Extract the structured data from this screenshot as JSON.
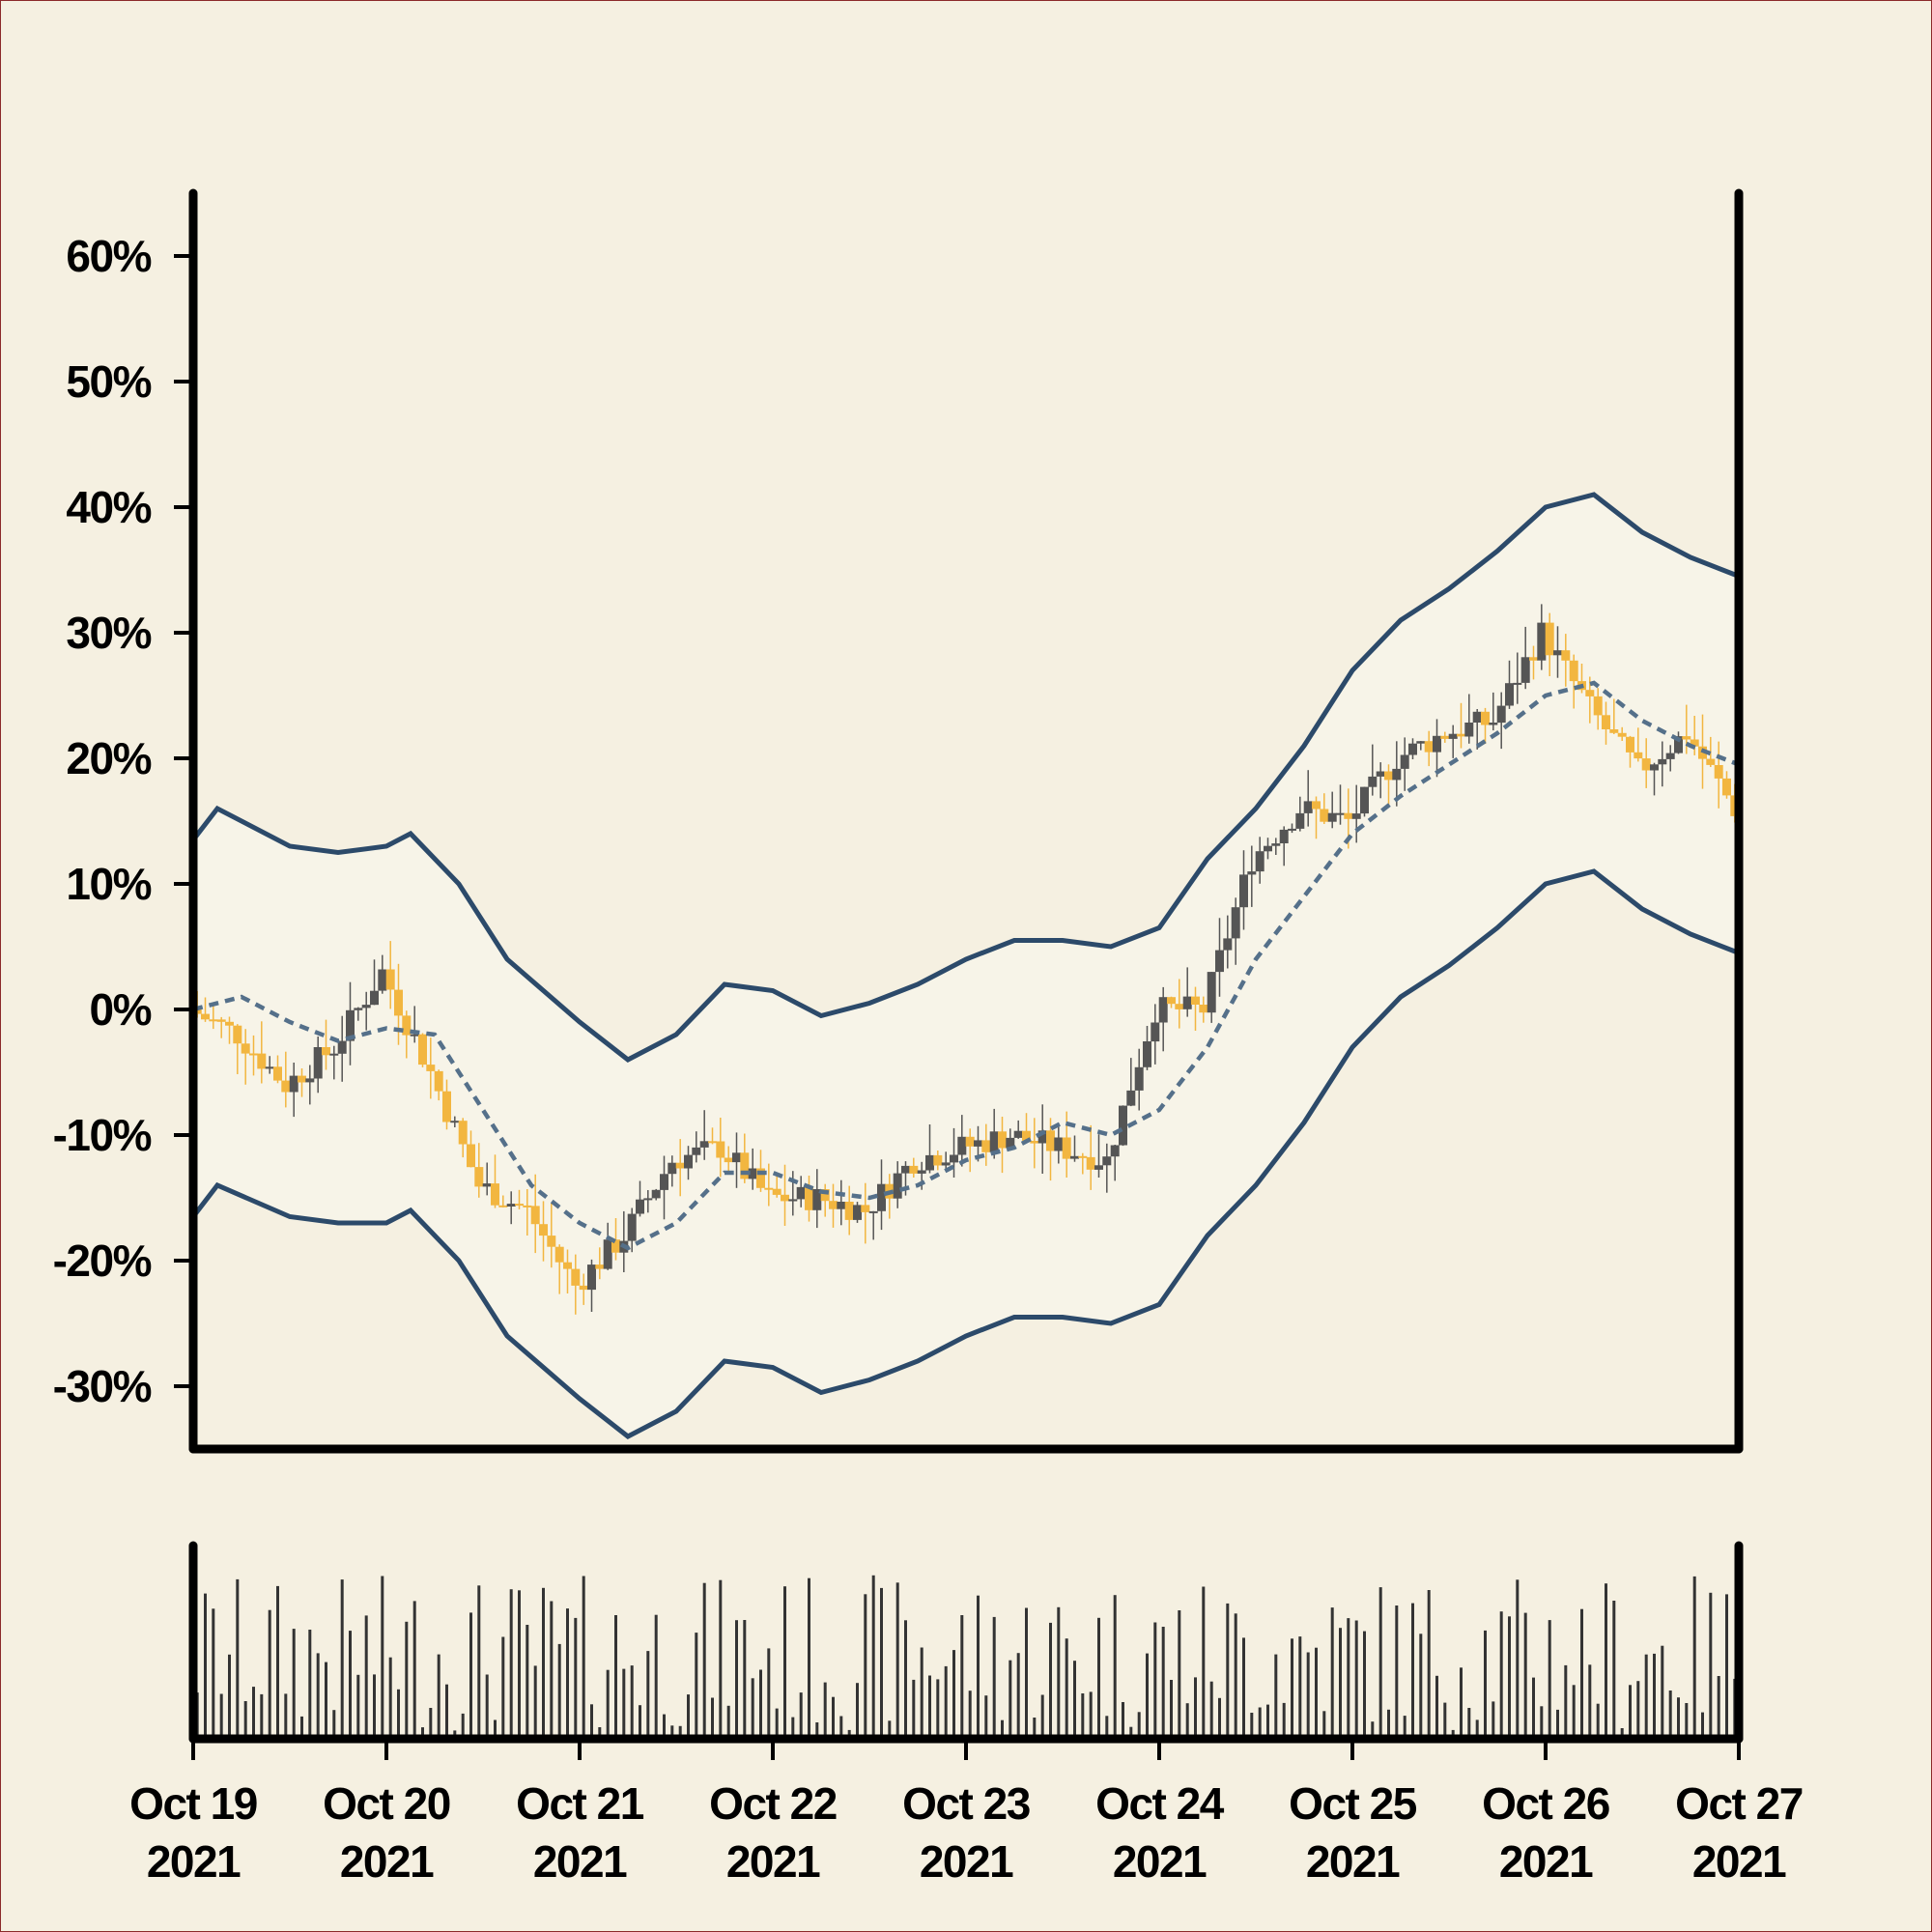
{
  "chart_data": {
    "type": "candlestick",
    "title": "",
    "xlabel": "",
    "ylabel": "",
    "y_unit": "%",
    "ylim": [
      -35,
      65
    ],
    "yticks": [
      {
        "value": 60,
        "label": "60%"
      },
      {
        "value": 50,
        "label": "50%"
      },
      {
        "value": 40,
        "label": "40%"
      },
      {
        "value": 30,
        "label": "30%"
      },
      {
        "value": 20,
        "label": "20%"
      },
      {
        "value": 10,
        "label": "10%"
      },
      {
        "value": 0,
        "label": "0%"
      },
      {
        "value": -10,
        "label": "-10%"
      },
      {
        "value": -20,
        "label": "-20%"
      },
      {
        "value": -30,
        "label": "-30%"
      }
    ],
    "xlim": [
      "2021-10-19",
      "2021-10-27"
    ],
    "xticks": [
      {
        "date": "2021-10-19",
        "line1": "Oct 19",
        "line2": "2021"
      },
      {
        "date": "2021-10-20",
        "line1": "Oct 20",
        "line2": "2021"
      },
      {
        "date": "2021-10-21",
        "line1": "Oct 21",
        "line2": "2021"
      },
      {
        "date": "2021-10-22",
        "line1": "Oct 22",
        "line2": "2021"
      },
      {
        "date": "2021-10-23",
        "line1": "Oct 23",
        "line2": "2021"
      },
      {
        "date": "2021-10-24",
        "line1": "Oct 24",
        "line2": "2021"
      },
      {
        "date": "2021-10-25",
        "line1": "Oct 25",
        "line2": "2021"
      },
      {
        "date": "2021-10-26",
        "line1": "Oct 26",
        "line2": "2021"
      },
      {
        "date": "2021-10-27",
        "line1": "Oct 27",
        "line2": "2021"
      }
    ],
    "grid": false,
    "legend": "none",
    "candle_frequency": "hourly",
    "close_path": [
      [
        "2021-10-19 00:00",
        0
      ],
      [
        "2021-10-19 06:00",
        -2
      ],
      [
        "2021-10-19 12:00",
        -6
      ],
      [
        "2021-10-19 18:00",
        -3
      ],
      [
        "2021-10-20 00:00",
        3
      ],
      [
        "2021-10-20 06:00",
        -5
      ],
      [
        "2021-10-20 12:00",
        -14
      ],
      [
        "2021-10-20 18:00",
        -16
      ],
      [
        "2021-10-21 00:00",
        -22
      ],
      [
        "2021-10-21 06:00",
        -18
      ],
      [
        "2021-10-21 12:00",
        -12
      ],
      [
        "2021-10-21 18:00",
        -11
      ],
      [
        "2021-10-22 00:00",
        -15
      ],
      [
        "2021-10-22 06:00",
        -15
      ],
      [
        "2021-10-22 12:00",
        -16
      ],
      [
        "2021-10-22 18:00",
        -12
      ],
      [
        "2021-10-23 00:00",
        -11
      ],
      [
        "2021-10-23 06:00",
        -10
      ],
      [
        "2021-10-23 12:00",
        -11
      ],
      [
        "2021-10-23 18:00",
        -12
      ],
      [
        "2021-10-24 00:00",
        0
      ],
      [
        "2021-10-24 06:00",
        0
      ],
      [
        "2021-10-24 12:00",
        12
      ],
      [
        "2021-10-24 18:00",
        16
      ],
      [
        "2021-10-25 00:00",
        15
      ],
      [
        "2021-10-25 06:00",
        20
      ],
      [
        "2021-10-25 12:00",
        22
      ],
      [
        "2021-10-25 18:00",
        23
      ],
      [
        "2021-10-26 00:00",
        30
      ],
      [
        "2021-10-26 06:00",
        24
      ],
      [
        "2021-10-26 12:00",
        19
      ],
      [
        "2021-10-26 18:00",
        22
      ],
      [
        "2021-10-27 00:00",
        16
      ]
    ],
    "moving_average": [
      [
        "2021-10-19 00:00",
        0
      ],
      [
        "2021-10-19 06:00",
        1
      ],
      [
        "2021-10-19 12:00",
        -1
      ],
      [
        "2021-10-19 18:00",
        -2.5
      ],
      [
        "2021-10-20 00:00",
        -1.5
      ],
      [
        "2021-10-20 06:00",
        -2
      ],
      [
        "2021-10-20 12:00",
        -8
      ],
      [
        "2021-10-20 18:00",
        -14
      ],
      [
        "2021-10-21 00:00",
        -17
      ],
      [
        "2021-10-21 06:00",
        -19
      ],
      [
        "2021-10-21 12:00",
        -17
      ],
      [
        "2021-10-21 18:00",
        -13
      ],
      [
        "2021-10-22 00:00",
        -13
      ],
      [
        "2021-10-22 06:00",
        -14.5
      ],
      [
        "2021-10-22 12:00",
        -15
      ],
      [
        "2021-10-22 18:00",
        -14
      ],
      [
        "2021-10-23 00:00",
        -12
      ],
      [
        "2021-10-23 06:00",
        -11
      ],
      [
        "2021-10-23 12:00",
        -9
      ],
      [
        "2021-10-23 18:00",
        -10
      ],
      [
        "2021-10-24 00:00",
        -8
      ],
      [
        "2021-10-24 06:00",
        -3
      ],
      [
        "2021-10-24 12:00",
        4
      ],
      [
        "2021-10-24 18:00",
        9
      ],
      [
        "2021-10-25 00:00",
        14
      ],
      [
        "2021-10-25 06:00",
        17
      ],
      [
        "2021-10-25 12:00",
        19.5
      ],
      [
        "2021-10-25 18:00",
        22
      ],
      [
        "2021-10-26 00:00",
        25
      ],
      [
        "2021-10-26 06:00",
        26
      ],
      [
        "2021-10-26 12:00",
        23
      ],
      [
        "2021-10-26 18:00",
        21
      ],
      [
        "2021-10-27 00:00",
        19.5
      ]
    ],
    "bands": {
      "upper": [
        [
          "2021-10-19 00:00",
          13.5
        ],
        [
          "2021-10-19 03:00",
          16
        ],
        [
          "2021-10-19 12:00",
          13
        ],
        [
          "2021-10-19 18:00",
          12.5
        ],
        [
          "2021-10-20 00:00",
          13
        ],
        [
          "2021-10-20 03:00",
          14
        ],
        [
          "2021-10-20 09:00",
          10
        ],
        [
          "2021-10-20 15:00",
          4
        ],
        [
          "2021-10-21 00:00",
          -1
        ],
        [
          "2021-10-21 06:00",
          -4
        ],
        [
          "2021-10-21 12:00",
          -2
        ],
        [
          "2021-10-21 18:00",
          2
        ],
        [
          "2021-10-22 00:00",
          1.5
        ],
        [
          "2021-10-22 06:00",
          -0.5
        ],
        [
          "2021-10-22 12:00",
          0.5
        ],
        [
          "2021-10-22 18:00",
          2
        ],
        [
          "2021-10-23 00:00",
          4
        ],
        [
          "2021-10-23 06:00",
          5.5
        ],
        [
          "2021-10-23 12:00",
          5.5
        ],
        [
          "2021-10-23 18:00",
          5
        ],
        [
          "2021-10-24 00:00",
          6.5
        ],
        [
          "2021-10-24 06:00",
          12
        ],
        [
          "2021-10-24 12:00",
          16
        ],
        [
          "2021-10-24 18:00",
          21
        ],
        [
          "2021-10-25 00:00",
          27
        ],
        [
          "2021-10-25 06:00",
          31
        ],
        [
          "2021-10-25 12:00",
          33.5
        ],
        [
          "2021-10-25 18:00",
          36.5
        ],
        [
          "2021-10-26 00:00",
          40
        ],
        [
          "2021-10-26 06:00",
          41
        ],
        [
          "2021-10-26 12:00",
          38
        ],
        [
          "2021-10-26 18:00",
          36
        ],
        [
          "2021-10-27 00:00",
          34.5
        ]
      ],
      "lower": [
        [
          "2021-10-19 00:00",
          -16.5
        ],
        [
          "2021-10-19 03:00",
          -14
        ],
        [
          "2021-10-19 12:00",
          -16.5
        ],
        [
          "2021-10-19 18:00",
          -17
        ],
        [
          "2021-10-20 00:00",
          -17
        ],
        [
          "2021-10-20 03:00",
          -16
        ],
        [
          "2021-10-20 09:00",
          -20
        ],
        [
          "2021-10-20 15:00",
          -26
        ],
        [
          "2021-10-21 00:00",
          -31
        ],
        [
          "2021-10-21 06:00",
          -34
        ],
        [
          "2021-10-21 12:00",
          -32
        ],
        [
          "2021-10-21 18:00",
          -28
        ],
        [
          "2021-10-22 00:00",
          -28.5
        ],
        [
          "2021-10-22 06:00",
          -30.5
        ],
        [
          "2021-10-22 12:00",
          -29.5
        ],
        [
          "2021-10-22 18:00",
          -28
        ],
        [
          "2021-10-23 00:00",
          -26
        ],
        [
          "2021-10-23 06:00",
          -24.5
        ],
        [
          "2021-10-23 12:00",
          -24.5
        ],
        [
          "2021-10-23 18:00",
          -25
        ],
        [
          "2021-10-24 00:00",
          -23.5
        ],
        [
          "2021-10-24 06:00",
          -18
        ],
        [
          "2021-10-24 12:00",
          -14
        ],
        [
          "2021-10-24 18:00",
          -9
        ],
        [
          "2021-10-25 00:00",
          -3
        ],
        [
          "2021-10-25 06:00",
          1
        ],
        [
          "2021-10-25 12:00",
          3.5
        ],
        [
          "2021-10-25 18:00",
          6.5
        ],
        [
          "2021-10-26 00:00",
          10
        ],
        [
          "2021-10-26 06:00",
          11
        ],
        [
          "2021-10-26 12:00",
          8
        ],
        [
          "2021-10-26 18:00",
          6
        ],
        [
          "2021-10-27 00:00",
          4.5
        ]
      ]
    },
    "volume_axis_ticks": "none"
  },
  "colors": {
    "background": "#f5f0e1",
    "band_fill": "#f7f4e8",
    "band_line": "#2c4a6a",
    "moving_average": "#55708a",
    "candle_up": "#555555",
    "candle_down": "#f2b640",
    "volume_bar": "#333333",
    "axis": "#000000"
  }
}
